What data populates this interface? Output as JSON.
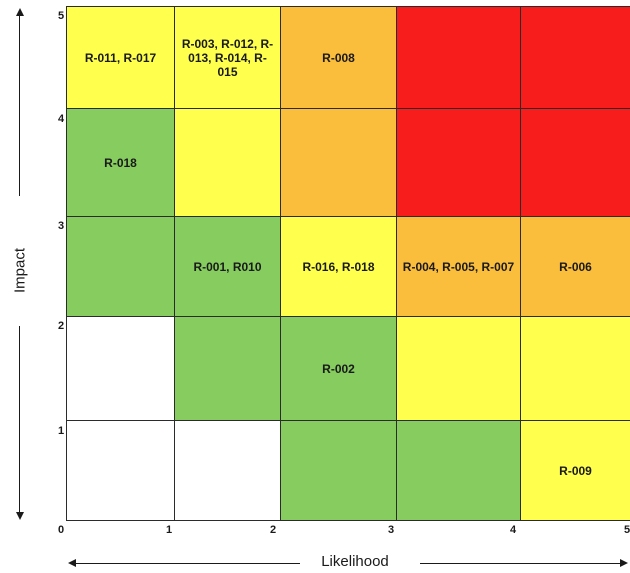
{
  "axes": {
    "x_label": "Likelihood",
    "y_label": "Impact",
    "x_ticks": [
      "0",
      "1",
      "2",
      "3",
      "4",
      "5"
    ],
    "y_ticks": [
      "1",
      "2",
      "3",
      "4",
      "5"
    ]
  },
  "colors": {
    "white": "#ffffff",
    "green": "#86cc5f",
    "yellow": "#ffff4d",
    "orange": "#fbbd3c",
    "red": "#f71d1d"
  },
  "grid": {
    "rows": [
      {
        "impact": 5,
        "cells": [
          {
            "color": "yellow",
            "label": "R-011, R-017"
          },
          {
            "color": "yellow",
            "label": "R-003, R-012, R-013, R-014, R-015"
          },
          {
            "color": "orange",
            "label": "R-008"
          },
          {
            "color": "red",
            "label": ""
          },
          {
            "color": "red",
            "label": ""
          }
        ]
      },
      {
        "impact": 4,
        "cells": [
          {
            "color": "green",
            "label": "R-018"
          },
          {
            "color": "yellow",
            "label": ""
          },
          {
            "color": "orange",
            "label": ""
          },
          {
            "color": "red",
            "label": ""
          },
          {
            "color": "red",
            "label": ""
          }
        ]
      },
      {
        "impact": 3,
        "cells": [
          {
            "color": "green",
            "label": ""
          },
          {
            "color": "green",
            "label": "R-001, R010"
          },
          {
            "color": "yellow",
            "label": "R-016, R-018"
          },
          {
            "color": "orange",
            "label": "R-004, R-005, R-007"
          },
          {
            "color": "orange",
            "label": "R-006"
          }
        ]
      },
      {
        "impact": 2,
        "cells": [
          {
            "color": "white",
            "label": ""
          },
          {
            "color": "green",
            "label": ""
          },
          {
            "color": "green",
            "label": "R-002"
          },
          {
            "color": "yellow",
            "label": ""
          },
          {
            "color": "yellow",
            "label": ""
          }
        ]
      },
      {
        "impact": 1,
        "cells": [
          {
            "color": "white",
            "label": ""
          },
          {
            "color": "white",
            "label": ""
          },
          {
            "color": "green",
            "label": ""
          },
          {
            "color": "green",
            "label": ""
          },
          {
            "color": "yellow",
            "label": "R-009"
          }
        ]
      }
    ]
  }
}
